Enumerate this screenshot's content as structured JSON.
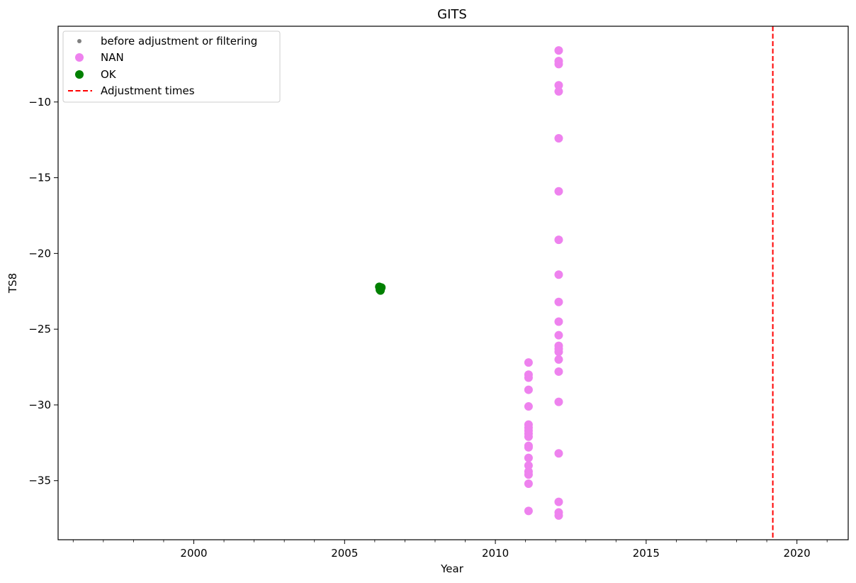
{
  "chart_data": {
    "type": "scatter",
    "title": "GITS",
    "xlabel": "Year",
    "ylabel": "TS8",
    "xlim": [
      1995.5,
      2021.7
    ],
    "ylim": [
      -38.9,
      -5.0
    ],
    "x_ticks": [
      2000,
      2005,
      2010,
      2015,
      2020
    ],
    "x_minor_step": 1,
    "y_ticks": [
      -10,
      -15,
      -20,
      -25,
      -30,
      -35
    ],
    "legend_position": "upper-left",
    "series": [
      {
        "name": "before adjustment or filtering",
        "marker": "small-dot",
        "color": "#808080",
        "points": []
      },
      {
        "name": "NAN",
        "marker": "circle",
        "color": "#ee82ee",
        "points": [
          [
            2011.1,
            -27.2
          ],
          [
            2011.1,
            -28.0
          ],
          [
            2011.1,
            -28.2
          ],
          [
            2011.1,
            -29.0
          ],
          [
            2011.1,
            -30.1
          ],
          [
            2011.1,
            -31.3
          ],
          [
            2011.1,
            -31.5
          ],
          [
            2011.1,
            -31.7
          ],
          [
            2011.1,
            -31.9
          ],
          [
            2011.1,
            -32.1
          ],
          [
            2011.1,
            -32.7
          ],
          [
            2011.1,
            -32.8
          ],
          [
            2011.1,
            -33.5
          ],
          [
            2011.1,
            -34.0
          ],
          [
            2011.1,
            -34.4
          ],
          [
            2011.1,
            -34.6
          ],
          [
            2011.1,
            -35.2
          ],
          [
            2011.1,
            -37.0
          ],
          [
            2012.1,
            -6.6
          ],
          [
            2012.1,
            -7.3
          ],
          [
            2012.1,
            -7.5
          ],
          [
            2012.1,
            -8.9
          ],
          [
            2012.1,
            -9.3
          ],
          [
            2012.1,
            -12.4
          ],
          [
            2012.1,
            -15.9
          ],
          [
            2012.1,
            -19.1
          ],
          [
            2012.1,
            -21.4
          ],
          [
            2012.1,
            -23.2
          ],
          [
            2012.1,
            -24.5
          ],
          [
            2012.1,
            -25.4
          ],
          [
            2012.1,
            -26.1
          ],
          [
            2012.1,
            -26.3
          ],
          [
            2012.1,
            -26.5
          ],
          [
            2012.1,
            -27.0
          ],
          [
            2012.1,
            -27.8
          ],
          [
            2012.1,
            -29.8
          ],
          [
            2012.1,
            -33.2
          ],
          [
            2012.1,
            -36.4
          ],
          [
            2012.1,
            -37.1
          ],
          [
            2012.1,
            -37.3
          ]
        ]
      },
      {
        "name": "OK",
        "marker": "circle",
        "color": "#008000",
        "points": [
          [
            2006.15,
            -22.2
          ],
          [
            2006.18,
            -22.3
          ],
          [
            2006.2,
            -22.35
          ],
          [
            2006.17,
            -22.4
          ],
          [
            2006.22,
            -22.25
          ],
          [
            2006.19,
            -22.45
          ]
        ]
      }
    ],
    "vlines": [
      {
        "name": "Adjustment times",
        "x": 2019.2,
        "color": "#ff0000",
        "style": "dashed"
      }
    ]
  }
}
